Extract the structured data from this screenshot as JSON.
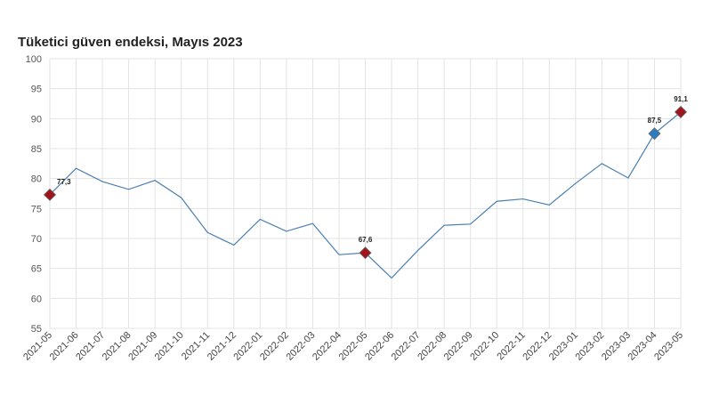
{
  "chart_data": {
    "type": "line",
    "title": "Tüketici güven endeksi, Mayıs 2023",
    "xlabel": "",
    "ylabel": "",
    "ylim": [
      55,
      100
    ],
    "yticks": [
      55,
      60,
      65,
      70,
      75,
      80,
      85,
      90,
      95,
      100
    ],
    "grid": true,
    "legend": "none",
    "line_color": "#4a7fb0",
    "categories": [
      "2021-05",
      "2021-06",
      "2021-07",
      "2021-08",
      "2021-09",
      "2021-10",
      "2021-11",
      "2021-12",
      "2022-01",
      "2022-02",
      "2022-03",
      "2022-04",
      "2022-05",
      "2022-06",
      "2022-07",
      "2022-08",
      "2022-09",
      "2022-10",
      "2022-11",
      "2022-12",
      "2023-01",
      "2023-02",
      "2023-03",
      "2023-04",
      "2023-05"
    ],
    "values": [
      77.3,
      81.7,
      79.5,
      78.2,
      79.7,
      76.8,
      71.0,
      68.9,
      73.2,
      71.2,
      72.5,
      67.3,
      67.6,
      63.4,
      68.0,
      72.2,
      72.4,
      76.2,
      76.6,
      75.6,
      79.2,
      82.5,
      80.1,
      87.5,
      91.1
    ],
    "highlights": [
      {
        "category": "2021-05",
        "label": "77,3",
        "color": "#a0141e"
      },
      {
        "category": "2022-05",
        "label": "67,6",
        "color": "#a0141e"
      },
      {
        "category": "2023-04",
        "label": "87,5",
        "color": "#2e7bbf"
      },
      {
        "category": "2023-05",
        "label": "91,1",
        "color": "#a0141e"
      }
    ]
  }
}
